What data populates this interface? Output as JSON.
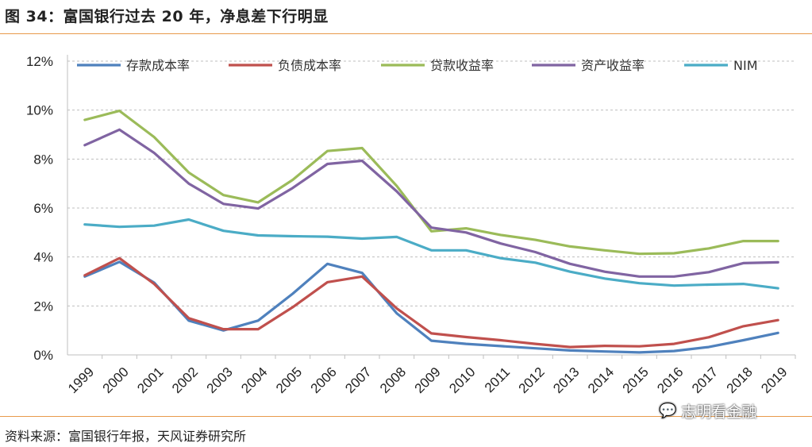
{
  "figure": {
    "title": "图 34：富国银行过去 20 年，净息差下行明显",
    "source": "资料来源：富国银行年报，天风证券研究所",
    "watermark": "志明看金融"
  },
  "chart_data": {
    "type": "line",
    "x": [
      "1999",
      "2000",
      "2001",
      "2002",
      "2003",
      "2004",
      "2005",
      "2006",
      "2007",
      "2008",
      "2009",
      "2010",
      "2011",
      "2012",
      "2013",
      "2014",
      "2015",
      "2016",
      "2017",
      "2018",
      "2019"
    ],
    "ylim": [
      0,
      12
    ],
    "yticks": [
      "0%",
      "2%",
      "4%",
      "6%",
      "8%",
      "10%",
      "12%"
    ],
    "ytick_values": [
      0,
      2,
      4,
      6,
      8,
      10,
      12
    ],
    "grid": true,
    "legend_position": "top",
    "series": [
      {
        "name": "存款成本率",
        "color": "#4f81bd",
        "values": [
          3.2,
          3.8,
          2.95,
          1.4,
          1.0,
          1.4,
          2.5,
          3.72,
          3.35,
          1.7,
          0.58,
          0.45,
          0.36,
          0.27,
          0.18,
          0.14,
          0.1,
          0.16,
          0.32,
          0.6,
          0.9
        ]
      },
      {
        "name": "负债成本率",
        "color": "#c0504d",
        "values": [
          3.25,
          3.95,
          2.9,
          1.5,
          1.05,
          1.05,
          1.95,
          2.97,
          3.2,
          1.9,
          0.88,
          0.73,
          0.6,
          0.45,
          0.32,
          0.37,
          0.35,
          0.45,
          0.72,
          1.17,
          1.42
        ]
      },
      {
        "name": "贷款收益率",
        "color": "#9bbb59",
        "values": [
          9.6,
          9.97,
          8.9,
          7.45,
          6.53,
          6.23,
          7.15,
          8.33,
          8.45,
          6.9,
          5.05,
          5.17,
          4.9,
          4.7,
          4.43,
          4.27,
          4.13,
          4.15,
          4.35,
          4.65,
          4.65
        ]
      },
      {
        "name": "资产收益率",
        "color": "#8064a2",
        "values": [
          8.57,
          9.2,
          8.25,
          7.0,
          6.17,
          5.98,
          6.82,
          7.8,
          7.93,
          6.68,
          5.2,
          5.0,
          4.55,
          4.2,
          3.72,
          3.4,
          3.2,
          3.2,
          3.38,
          3.75,
          3.78
        ]
      },
      {
        "name": "NIM",
        "color": "#4bacc6",
        "values": [
          5.33,
          5.23,
          5.28,
          5.53,
          5.07,
          4.88,
          4.85,
          4.83,
          4.75,
          4.82,
          4.27,
          4.27,
          3.95,
          3.77,
          3.4,
          3.12,
          2.93,
          2.83,
          2.87,
          2.9,
          2.72
        ]
      }
    ]
  }
}
